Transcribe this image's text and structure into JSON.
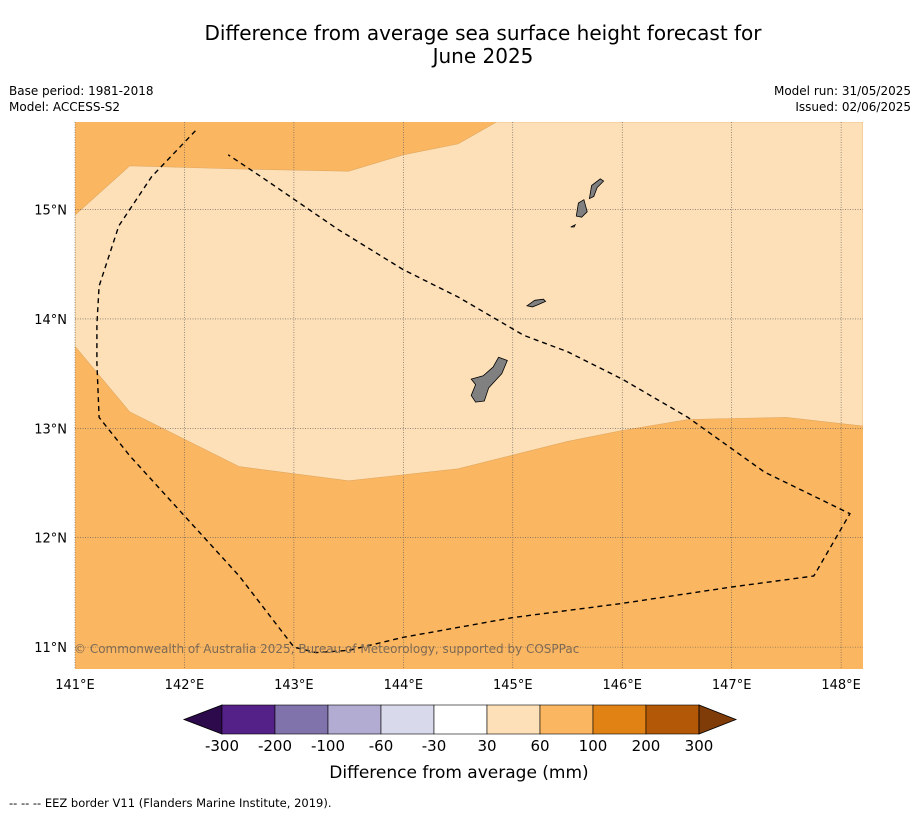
{
  "title_line1": "Difference from average sea surface height forecast for",
  "title_line2": "June 2025",
  "meta": {
    "base_period": "Base period: 1981-2018",
    "model": "Model: ACCESS-S2",
    "model_run": "Model run: 31/05/2025",
    "issued": "Issued: 02/06/2025"
  },
  "map": {
    "extent": {
      "lon": [
        141.0,
        148.2
      ],
      "lat": [
        10.8,
        15.8
      ]
    },
    "lon_ticks": [
      141,
      142,
      143,
      144,
      145,
      146,
      147,
      148
    ],
    "lat_ticks": [
      11,
      12,
      13,
      14,
      15
    ],
    "lon_labels": [
      "141°E",
      "142°E",
      "143°E",
      "144°E",
      "145°E",
      "146°E",
      "147°E",
      "148°E"
    ],
    "lat_labels": [
      "11°N",
      "12°N",
      "13°N",
      "14°N",
      "15°N"
    ],
    "regions": [
      {
        "level": "30 to 60",
        "color": "#fde0b7",
        "points": [
          [
            141.0,
            14.95
          ],
          [
            141.5,
            15.4
          ],
          [
            142.5,
            15.37
          ],
          [
            143.5,
            15.35
          ],
          [
            144.0,
            15.5
          ],
          [
            144.5,
            15.6
          ],
          [
            144.85,
            15.8
          ],
          [
            148.2,
            15.8
          ],
          [
            148.2,
            13.02
          ],
          [
            147.5,
            13.1
          ],
          [
            147.0,
            13.09
          ],
          [
            146.6,
            13.08
          ],
          [
            146.0,
            12.98
          ],
          [
            145.5,
            12.88
          ],
          [
            144.5,
            12.63
          ],
          [
            143.5,
            12.52
          ],
          [
            142.5,
            12.65
          ],
          [
            141.5,
            13.15
          ],
          [
            141.0,
            13.75
          ]
        ]
      }
    ],
    "islands": [
      {
        "name": "Guam",
        "points": [
          [
            144.62,
            13.45
          ],
          [
            144.73,
            13.48
          ],
          [
            144.82,
            13.56
          ],
          [
            144.87,
            13.65
          ],
          [
            144.95,
            13.62
          ],
          [
            144.9,
            13.5
          ],
          [
            144.78,
            13.37
          ],
          [
            144.74,
            13.25
          ],
          [
            144.66,
            13.24
          ],
          [
            144.62,
            13.3
          ],
          [
            144.66,
            13.4
          ]
        ]
      },
      {
        "name": "Rota",
        "points": [
          [
            145.13,
            14.12
          ],
          [
            145.2,
            14.17
          ],
          [
            145.28,
            14.18
          ],
          [
            145.3,
            14.16
          ],
          [
            145.23,
            14.13
          ],
          [
            145.18,
            14.11
          ]
        ]
      },
      {
        "name": "Tinian",
        "points": [
          [
            145.58,
            14.94
          ],
          [
            145.6,
            15.06
          ],
          [
            145.65,
            15.09
          ],
          [
            145.68,
            14.98
          ],
          [
            145.63,
            14.93
          ]
        ]
      },
      {
        "name": "Saipan",
        "points": [
          [
            145.7,
            15.1
          ],
          [
            145.72,
            15.22
          ],
          [
            145.8,
            15.28
          ],
          [
            145.83,
            15.26
          ],
          [
            145.77,
            15.2
          ],
          [
            145.74,
            15.12
          ]
        ]
      },
      {
        "name": "Aguijan",
        "points": [
          [
            145.53,
            14.84
          ],
          [
            145.57,
            14.86
          ],
          [
            145.56,
            14.84
          ]
        ]
      }
    ],
    "eez_border": [
      [
        142.1,
        15.72
      ],
      [
        141.7,
        15.3
      ],
      [
        141.4,
        14.85
      ],
      [
        141.22,
        14.3
      ],
      [
        141.2,
        13.95
      ],
      [
        141.2,
        13.6
      ],
      [
        141.22,
        13.1
      ],
      [
        141.5,
        12.75
      ],
      [
        142.0,
        12.2
      ],
      [
        142.5,
        11.65
      ],
      [
        143.0,
        11.0
      ],
      [
        143.2,
        10.95
      ],
      [
        143.5,
        10.97
      ],
      [
        144.0,
        11.09
      ],
      [
        145.0,
        11.27
      ],
      [
        146.0,
        11.4
      ],
      [
        147.0,
        11.55
      ],
      [
        147.75,
        11.65
      ],
      [
        148.08,
        12.22
      ],
      [
        147.3,
        12.6
      ],
      [
        146.6,
        13.1
      ],
      [
        146.0,
        13.45
      ],
      [
        145.5,
        13.7
      ],
      [
        145.1,
        13.85
      ],
      [
        144.5,
        14.2
      ],
      [
        144.0,
        14.45
      ],
      [
        143.4,
        14.82
      ],
      [
        142.7,
        15.3
      ],
      [
        142.4,
        15.5
      ]
    ],
    "copyright": "© Commonwealth of Australia 2025, Bureau of Meteorology, supported by COSPPac"
  },
  "legend": {
    "colors": [
      "#2d0a4c",
      "#542188",
      "#8073ac",
      "#b2abd2",
      "#d8daeb",
      "#ffffff",
      "#fde0b7",
      "#fbb661",
      "#e08214",
      "#b35806",
      "#7f3b08"
    ],
    "labels": [
      "-300",
      "-200",
      "-100",
      "-60",
      "-30",
      "30",
      "60",
      "100",
      "200",
      "300"
    ],
    "title": "Difference from average (mm)"
  },
  "background_color": "#fbb661",
  "footnote": "--  --  -- EEZ border V11 (Flanders Marine Institute, 2019)."
}
